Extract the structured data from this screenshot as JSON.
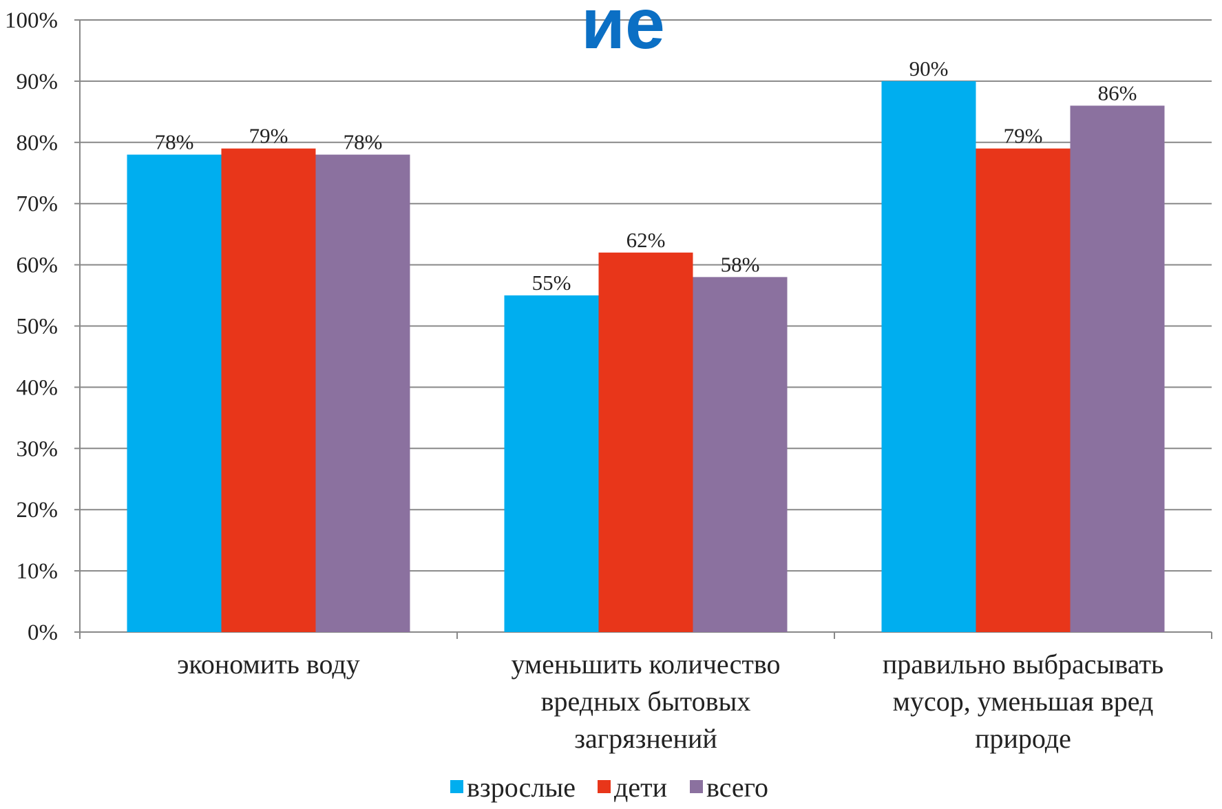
{
  "overlay_text": "ие",
  "chart_data": {
    "type": "bar",
    "title": "",
    "xlabel": "",
    "ylabel": "",
    "ylim": [
      0,
      100
    ],
    "y_tick_step": 10,
    "y_tick_suffix": "%",
    "grid": true,
    "legend_position": "bottom",
    "categories": [
      [
        "экономить воду"
      ],
      [
        "уменьшить количество",
        "вредных бытовых",
        "загрязнений"
      ],
      [
        "правильно выбрасывать",
        "мусор, уменьшая вред",
        "природе"
      ]
    ],
    "series": [
      {
        "name": "взрослые",
        "color": "#00aeef",
        "values": [
          78,
          55,
          90
        ]
      },
      {
        "name": "дети",
        "color": "#e8361a",
        "values": [
          79,
          62,
          79
        ]
      },
      {
        "name": "всего",
        "color": "#8b719f",
        "values": [
          78,
          58,
          86
        ]
      }
    ],
    "data_labels": [
      [
        "78%",
        "55%",
        "90%"
      ],
      [
        "79%",
        "62%",
        "79%"
      ],
      [
        "78%",
        "58%",
        "86%"
      ]
    ]
  }
}
